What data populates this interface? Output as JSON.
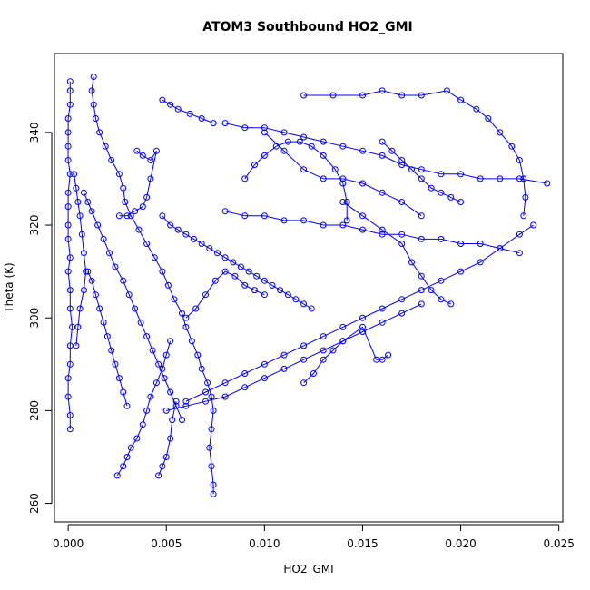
{
  "chart_data": {
    "type": "scatter",
    "title": "ATOM3 Southbound HO2_GMI",
    "xlabel": "HO2_GMI",
    "ylabel": "Theta (K)",
    "xlim": [
      -0.0007,
      0.0252
    ],
    "ylim": [
      256,
      357
    ],
    "x_ticks": [
      0.0,
      0.005,
      0.01,
      0.015,
      0.02,
      0.025
    ],
    "x_tick_labels": [
      "0.000",
      "0.005",
      "0.010",
      "0.015",
      "0.020",
      "0.025"
    ],
    "y_ticks": [
      260,
      280,
      300,
      320,
      340
    ],
    "y_tick_labels": [
      "260",
      "280",
      "300",
      "320",
      "340"
    ],
    "grid": false,
    "legend": "none",
    "color": "#0000ff",
    "marker": "open-circle",
    "series": [
      {
        "points": [
          [
            0.0001,
            351
          ],
          [
            0.0001,
            349
          ],
          [
            0.0001,
            346
          ],
          [
            0.0,
            343
          ],
          [
            0.0,
            340
          ],
          [
            0.0,
            337
          ],
          [
            0.0,
            334
          ],
          [
            0.0001,
            331
          ],
          [
            0.0,
            327
          ],
          [
            0.0,
            324
          ],
          [
            0.0,
            320
          ],
          [
            0.0,
            317
          ],
          [
            0.0001,
            313
          ],
          [
            0.0,
            310
          ],
          [
            0.0001,
            306
          ],
          [
            0.0001,
            302
          ],
          [
            0.0002,
            298
          ],
          [
            0.0001,
            294
          ],
          [
            0.0001,
            290
          ],
          [
            0.0,
            287
          ],
          [
            0.0,
            283
          ],
          [
            0.0001,
            279
          ],
          [
            0.0001,
            276
          ]
        ]
      },
      {
        "points": [
          [
            0.0013,
            352
          ],
          [
            0.0012,
            349
          ],
          [
            0.0013,
            346
          ],
          [
            0.0014,
            343
          ],
          [
            0.0016,
            340
          ],
          [
            0.0019,
            337
          ],
          [
            0.0022,
            334
          ],
          [
            0.0026,
            331
          ],
          [
            0.0028,
            328
          ],
          [
            0.0029,
            325
          ],
          [
            0.0032,
            322
          ],
          [
            0.0036,
            319
          ],
          [
            0.004,
            316
          ],
          [
            0.0044,
            313
          ],
          [
            0.0048,
            310
          ],
          [
            0.0051,
            307
          ],
          [
            0.0054,
            304
          ],
          [
            0.0058,
            301
          ],
          [
            0.006,
            298
          ],
          [
            0.0063,
            295
          ],
          [
            0.0066,
            292
          ],
          [
            0.0068,
            289
          ],
          [
            0.0071,
            286
          ],
          [
            0.0073,
            283
          ],
          [
            0.0074,
            280
          ],
          [
            0.0073,
            276
          ],
          [
            0.0072,
            272
          ],
          [
            0.0073,
            268
          ],
          [
            0.0074,
            264
          ],
          [
            0.0074,
            262
          ]
        ]
      },
      {
        "points": [
          [
            0.0008,
            327
          ],
          [
            0.001,
            325
          ],
          [
            0.0012,
            323
          ],
          [
            0.0015,
            320
          ],
          [
            0.0018,
            317
          ],
          [
            0.0021,
            314
          ],
          [
            0.0024,
            311
          ],
          [
            0.0028,
            308
          ],
          [
            0.0031,
            305
          ],
          [
            0.0034,
            302
          ],
          [
            0.0037,
            299
          ],
          [
            0.004,
            296
          ],
          [
            0.0043,
            293
          ],
          [
            0.0046,
            290
          ],
          [
            0.0049,
            287
          ],
          [
            0.0052,
            284
          ],
          [
            0.0055,
            281
          ],
          [
            0.0058,
            278
          ]
        ]
      },
      {
        "points": [
          [
            0.0048,
            322
          ],
          [
            0.0052,
            320
          ],
          [
            0.0056,
            319
          ],
          [
            0.006,
            318
          ],
          [
            0.0064,
            317
          ],
          [
            0.0068,
            316
          ],
          [
            0.0072,
            315
          ],
          [
            0.0076,
            314
          ],
          [
            0.008,
            313
          ],
          [
            0.0084,
            312
          ],
          [
            0.0088,
            311
          ],
          [
            0.0092,
            310
          ],
          [
            0.0096,
            309
          ],
          [
            0.01,
            308
          ],
          [
            0.0104,
            307
          ],
          [
            0.0108,
            306
          ],
          [
            0.0112,
            305
          ],
          [
            0.0116,
            304
          ],
          [
            0.012,
            303
          ],
          [
            0.0124,
            302
          ]
        ]
      },
      {
        "points": [
          [
            0.0048,
            347
          ],
          [
            0.0052,
            346
          ],
          [
            0.0056,
            345
          ],
          [
            0.0062,
            344
          ],
          [
            0.0068,
            343
          ],
          [
            0.0074,
            342
          ],
          [
            0.008,
            342
          ],
          [
            0.009,
            341
          ],
          [
            0.01,
            341
          ],
          [
            0.011,
            340
          ],
          [
            0.012,
            339
          ],
          [
            0.013,
            338
          ],
          [
            0.014,
            337
          ],
          [
            0.015,
            336
          ],
          [
            0.016,
            335
          ],
          [
            0.017,
            333
          ],
          [
            0.018,
            332
          ],
          [
            0.019,
            331
          ],
          [
            0.02,
            331
          ],
          [
            0.021,
            330
          ],
          [
            0.022,
            330
          ],
          [
            0.023,
            330
          ],
          [
            0.0244,
            329
          ]
        ]
      },
      {
        "points": [
          [
            0.012,
            348
          ],
          [
            0.0135,
            348
          ],
          [
            0.015,
            348
          ],
          [
            0.016,
            349
          ],
          [
            0.017,
            348
          ],
          [
            0.018,
            348
          ],
          [
            0.0193,
            349
          ],
          [
            0.02,
            347
          ],
          [
            0.0208,
            345
          ],
          [
            0.0214,
            343
          ],
          [
            0.022,
            340
          ],
          [
            0.0226,
            337
          ],
          [
            0.023,
            334
          ],
          [
            0.0232,
            330
          ],
          [
            0.0233,
            326
          ],
          [
            0.0232,
            322
          ]
        ]
      },
      {
        "points": [
          [
            0.008,
            323
          ],
          [
            0.009,
            322
          ],
          [
            0.01,
            322
          ],
          [
            0.011,
            321
          ],
          [
            0.012,
            321
          ],
          [
            0.013,
            320
          ],
          [
            0.014,
            320
          ],
          [
            0.015,
            319
          ],
          [
            0.016,
            318
          ],
          [
            0.017,
            318
          ],
          [
            0.018,
            317
          ],
          [
            0.019,
            317
          ],
          [
            0.02,
            316
          ],
          [
            0.021,
            316
          ],
          [
            0.022,
            315
          ],
          [
            0.023,
            314
          ]
        ]
      },
      {
        "points": [
          [
            0.006,
            282
          ],
          [
            0.007,
            284
          ],
          [
            0.008,
            286
          ],
          [
            0.009,
            288
          ],
          [
            0.01,
            290
          ],
          [
            0.011,
            292
          ],
          [
            0.012,
            294
          ],
          [
            0.013,
            296
          ],
          [
            0.014,
            298
          ],
          [
            0.015,
            300
          ],
          [
            0.016,
            302
          ],
          [
            0.017,
            304
          ],
          [
            0.018,
            306
          ],
          [
            0.019,
            308
          ],
          [
            0.02,
            310
          ],
          [
            0.021,
            312
          ],
          [
            0.022,
            315
          ],
          [
            0.023,
            318
          ],
          [
            0.0237,
            320
          ]
        ]
      },
      {
        "points": [
          [
            0.005,
            280
          ],
          [
            0.006,
            281
          ],
          [
            0.007,
            282
          ],
          [
            0.008,
            283
          ],
          [
            0.009,
            285
          ],
          [
            0.01,
            287
          ],
          [
            0.011,
            289
          ],
          [
            0.012,
            291
          ],
          [
            0.013,
            293
          ],
          [
            0.014,
            295
          ],
          [
            0.015,
            297
          ],
          [
            0.016,
            299
          ],
          [
            0.017,
            301
          ],
          [
            0.018,
            303
          ]
        ]
      },
      {
        "points": [
          [
            0.009,
            330
          ],
          [
            0.0095,
            333
          ],
          [
            0.01,
            335
          ],
          [
            0.0106,
            337
          ],
          [
            0.0112,
            338
          ],
          [
            0.0118,
            338
          ],
          [
            0.0124,
            337
          ],
          [
            0.013,
            335
          ],
          [
            0.0136,
            332
          ],
          [
            0.014,
            329
          ],
          [
            0.0142,
            325
          ],
          [
            0.0142,
            321
          ]
        ]
      },
      {
        "points": [
          [
            0.0025,
            266
          ],
          [
            0.0028,
            268
          ],
          [
            0.003,
            270
          ],
          [
            0.0032,
            272
          ],
          [
            0.0035,
            274
          ],
          [
            0.0038,
            277
          ],
          [
            0.004,
            280
          ],
          [
            0.0042,
            283
          ],
          [
            0.0045,
            286
          ],
          [
            0.0048,
            289
          ],
          [
            0.005,
            292
          ],
          [
            0.0052,
            295
          ]
        ]
      },
      {
        "points": [
          [
            0.0046,
            266
          ],
          [
            0.0048,
            268
          ],
          [
            0.005,
            270
          ],
          [
            0.0052,
            274
          ],
          [
            0.0053,
            278
          ],
          [
            0.0055,
            282
          ]
        ]
      },
      {
        "points": [
          [
            0.012,
            286
          ],
          [
            0.0125,
            288
          ],
          [
            0.013,
            291
          ],
          [
            0.0135,
            293
          ],
          [
            0.014,
            295
          ],
          [
            0.015,
            298
          ],
          [
            0.0157,
            291
          ],
          [
            0.016,
            291
          ],
          [
            0.0163,
            292
          ]
        ]
      },
      {
        "points": [
          [
            0.001,
            310
          ],
          [
            0.0012,
            308
          ],
          [
            0.0014,
            305
          ],
          [
            0.0016,
            302
          ],
          [
            0.0018,
            299
          ],
          [
            0.002,
            296
          ],
          [
            0.0022,
            293
          ],
          [
            0.0024,
            290
          ],
          [
            0.0026,
            287
          ],
          [
            0.0028,
            284
          ],
          [
            0.003,
            281
          ]
        ]
      },
      {
        "points": [
          [
            0.0003,
            331
          ],
          [
            0.0004,
            328
          ],
          [
            0.0005,
            325
          ],
          [
            0.0006,
            322
          ],
          [
            0.0007,
            318
          ],
          [
            0.0008,
            314
          ],
          [
            0.0009,
            310
          ],
          [
            0.0008,
            306
          ],
          [
            0.0006,
            302
          ],
          [
            0.0005,
            298
          ],
          [
            0.0004,
            294
          ]
        ]
      },
      {
        "points": [
          [
            0.0035,
            336
          ],
          [
            0.0038,
            335
          ],
          [
            0.0042,
            334
          ],
          [
            0.0045,
            336
          ],
          [
            0.0042,
            330
          ],
          [
            0.004,
            326
          ],
          [
            0.0038,
            324
          ],
          [
            0.0034,
            323
          ],
          [
            0.003,
            322
          ],
          [
            0.0026,
            322
          ]
        ]
      },
      {
        "points": [
          [
            0.014,
            325
          ],
          [
            0.015,
            322
          ],
          [
            0.016,
            319
          ],
          [
            0.017,
            316
          ],
          [
            0.0175,
            312
          ],
          [
            0.018,
            309
          ],
          [
            0.0185,
            306
          ],
          [
            0.019,
            304
          ],
          [
            0.0195,
            303
          ]
        ]
      },
      {
        "points": [
          [
            0.006,
            300
          ],
          [
            0.0065,
            302
          ],
          [
            0.007,
            305
          ],
          [
            0.0075,
            308
          ],
          [
            0.008,
            310
          ],
          [
            0.0085,
            309
          ],
          [
            0.009,
            307
          ],
          [
            0.0095,
            306
          ],
          [
            0.01,
            305
          ]
        ]
      },
      {
        "points": [
          [
            0.01,
            340
          ],
          [
            0.011,
            336
          ],
          [
            0.012,
            332
          ],
          [
            0.013,
            330
          ],
          [
            0.014,
            330
          ],
          [
            0.015,
            329
          ],
          [
            0.016,
            327
          ],
          [
            0.017,
            325
          ],
          [
            0.018,
            322
          ]
        ]
      },
      {
        "points": [
          [
            0.016,
            338
          ],
          [
            0.0165,
            336
          ],
          [
            0.017,
            334
          ],
          [
            0.0175,
            332
          ],
          [
            0.018,
            330
          ],
          [
            0.0185,
            328
          ],
          [
            0.019,
            327
          ],
          [
            0.0195,
            326
          ],
          [
            0.02,
            325
          ]
        ]
      }
    ]
  }
}
